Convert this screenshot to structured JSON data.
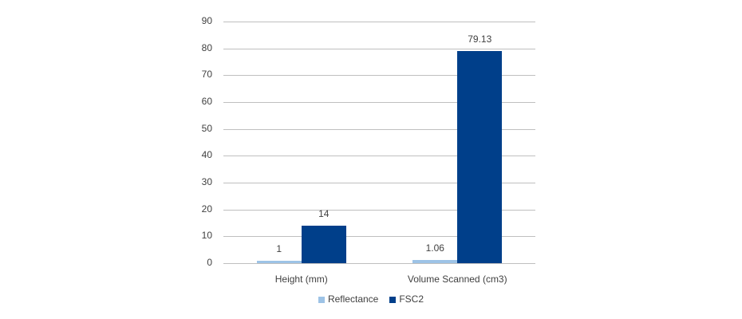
{
  "chart_data": {
    "type": "bar",
    "title": "",
    "xlabel": "",
    "ylabel": "",
    "categories": [
      "Height (mm)",
      "Volume Scanned (cm3)"
    ],
    "series": [
      {
        "name": "Reflectance",
        "color": "#9dc3e6",
        "values": [
          1,
          1.06
        ],
        "labels": [
          "1",
          "1.06"
        ]
      },
      {
        "name": "FSC2",
        "color": "#003f8a",
        "values": [
          14,
          79.13
        ],
        "labels": [
          "14",
          "79.13"
        ]
      }
    ],
    "ylim": [
      0,
      90
    ],
    "yticks": [
      0,
      10,
      20,
      30,
      40,
      50,
      60,
      70,
      80,
      90
    ],
    "grid": true,
    "legend_position": "bottom"
  }
}
